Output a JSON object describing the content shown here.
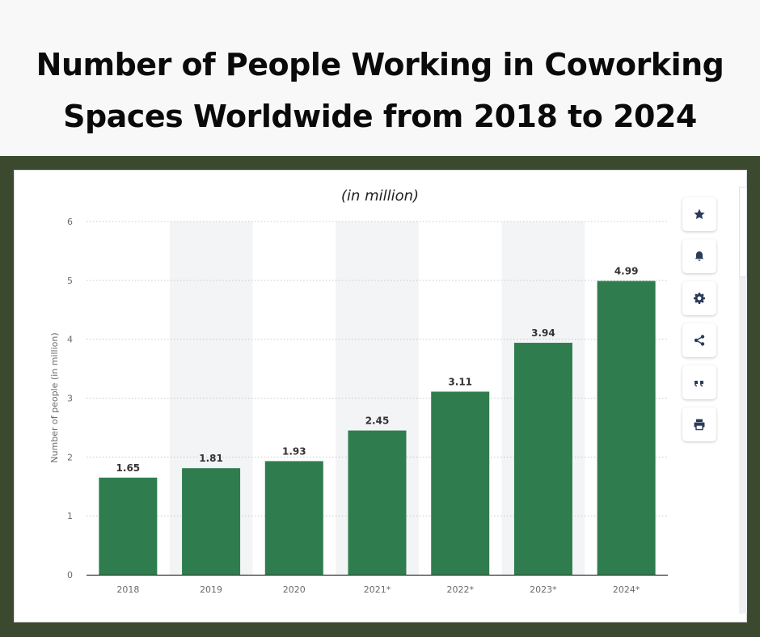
{
  "header": {
    "title_line1": "Number of People Working in Coworking",
    "title_line2": "Spaces Worldwide from 2018 to 2024"
  },
  "colors": {
    "frame": "#3b4a2e",
    "bar": "#2f7d4f"
  },
  "toolbar": {
    "items": [
      {
        "icon": "star-icon"
      },
      {
        "icon": "bell-icon"
      },
      {
        "icon": "gear-icon"
      },
      {
        "icon": "share-icon"
      },
      {
        "icon": "quote-icon"
      },
      {
        "icon": "print-icon"
      }
    ]
  },
  "chart_data": {
    "type": "bar",
    "subtitle": "(in million)",
    "categories": [
      "2018",
      "2019",
      "2020",
      "2021*",
      "2022*",
      "2023*",
      "2024*"
    ],
    "values": [
      1.65,
      1.81,
      1.93,
      2.45,
      3.11,
      3.94,
      4.99
    ],
    "value_labels": [
      "1.65",
      "1.81",
      "1.93",
      "2.45",
      "3.11",
      "3.94",
      "4.99"
    ],
    "ylabel": "Number of people (in million)",
    "xlabel": "",
    "ylim": [
      0,
      6
    ],
    "yticks": [
      "0",
      "1",
      "2",
      "3",
      "4",
      "5",
      "6"
    ],
    "grid": true,
    "shaded_columns": [
      "2019",
      "2021*",
      "2023*"
    ]
  }
}
